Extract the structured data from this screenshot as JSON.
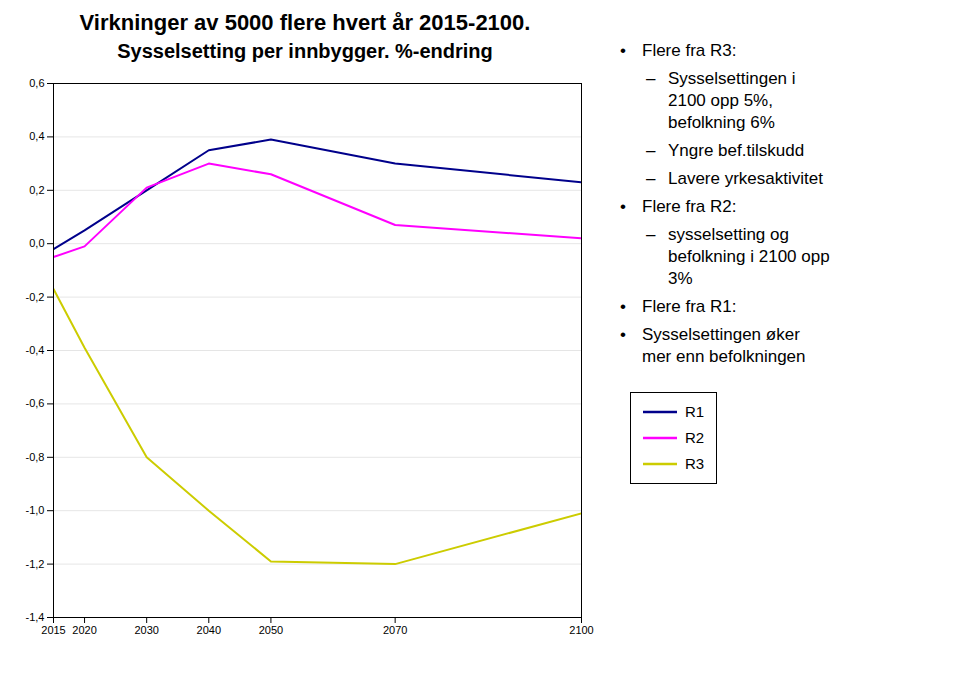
{
  "chart_data": {
    "type": "line",
    "title": "Virkninger av 5000 flere hvert år 2015-2100.",
    "subtitle": "Sysselsetting per innbygger. %-endring",
    "x": [
      2015,
      2020,
      2030,
      2040,
      2050,
      2070,
      2100
    ],
    "series": [
      {
        "name": "R1",
        "color": "#00008B",
        "values": [
          -0.02,
          0.05,
          0.2,
          0.35,
          0.39,
          0.3,
          0.23
        ]
      },
      {
        "name": "R2",
        "color": "#FF00FF",
        "values": [
          -0.05,
          -0.01,
          0.21,
          0.3,
          0.26,
          0.07,
          0.02
        ]
      },
      {
        "name": "R3",
        "color": "#CCCC00",
        "values": [
          -0.17,
          -0.39,
          -0.8,
          -1.0,
          -1.19,
          -1.2,
          -1.01
        ]
      }
    ],
    "xlim": [
      2015,
      2100
    ],
    "xticks": [
      2015,
      2020,
      2030,
      2040,
      2050,
      2070,
      2100
    ],
    "ylim": [
      -1.4,
      0.6
    ],
    "yticks": [
      {
        "value": -1.4,
        "label": "-1,4"
      },
      {
        "value": -1.2,
        "label": "-1,2"
      },
      {
        "value": -1.0,
        "label": "-1,0"
      },
      {
        "value": -0.8,
        "label": "-0,8"
      },
      {
        "value": -0.6,
        "label": "-0,6"
      },
      {
        "value": -0.4,
        "label": "-0,4"
      },
      {
        "value": -0.2,
        "label": "-0,2"
      },
      {
        "value": 0.0,
        "label": "0,0"
      },
      {
        "value": 0.2,
        "label": "0,2"
      },
      {
        "value": 0.4,
        "label": "0,4"
      },
      {
        "value": 0.6,
        "label": "0,6"
      }
    ],
    "grid": "y",
    "legend": "right",
    "annotations": [
      {
        "symbol": "•",
        "text": "Flere fra R3:",
        "level": 0
      },
      {
        "symbol": "–",
        "text": "Sysselsettingen i\n2100 opp 5%,\nbefolkning 6%",
        "level": 1
      },
      {
        "symbol": "–",
        "text": "Yngre bef.tilskudd",
        "level": 1
      },
      {
        "symbol": "–",
        "text": "Lavere yrkesaktivitet",
        "level": 1
      },
      {
        "symbol": "•",
        "text": "Flere fra R2:",
        "level": 0
      },
      {
        "symbol": "–",
        "text": "sysselsetting og\nbefolkning i 2100 opp\n3%",
        "level": 1
      },
      {
        "symbol": "•",
        "text": "Flere fra R1:",
        "level": 0
      },
      {
        "symbol": "•",
        "text": "Sysselsettingen øker\nmer enn befolkningen",
        "level": 0
      }
    ]
  }
}
